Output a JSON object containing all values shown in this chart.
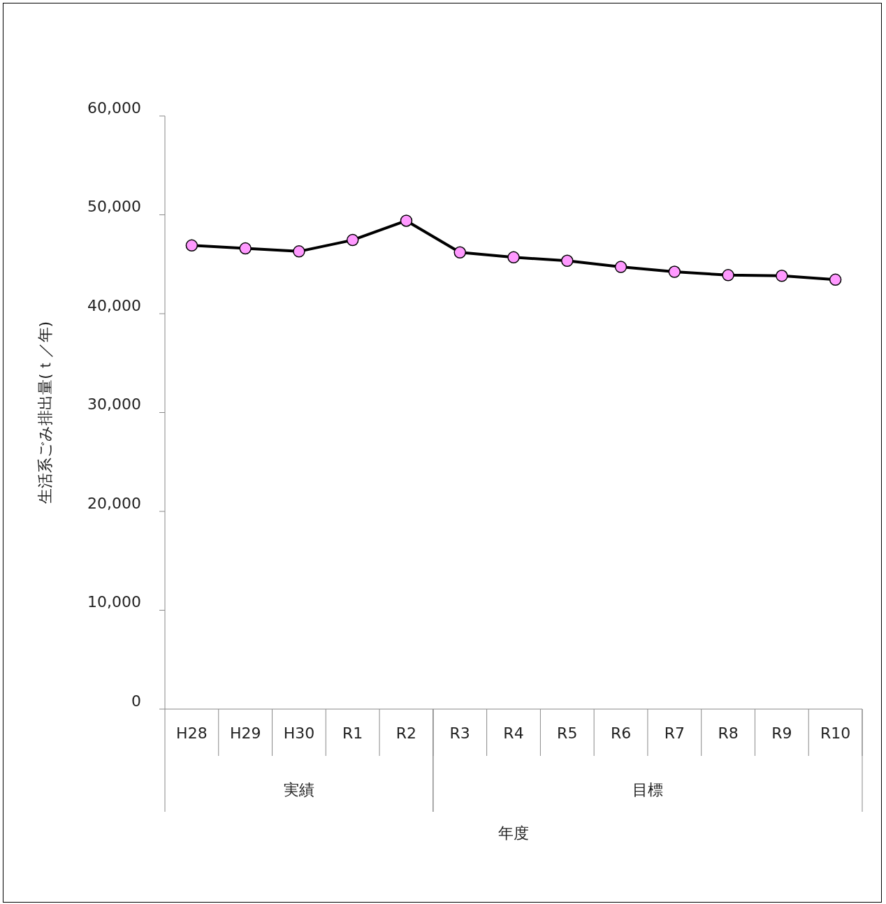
{
  "chart_data": {
    "type": "line",
    "ylabel": "生活系ごみ排出量(ｔ／年)",
    "categories": [
      "H28",
      "H29",
      "H30",
      "R1",
      "R2",
      "R3",
      "R4",
      "R5",
      "R6",
      "R7",
      "R8",
      "R9",
      "R10"
    ],
    "series": [
      {
        "color": "#000000",
        "values": [
          46900,
          46600,
          46300,
          47450,
          49400,
          46200,
          45700,
          45350,
          44730,
          44240,
          43900,
          43830,
          43440
        ]
      }
    ],
    "marker": "circle",
    "line_style": "solid",
    "grid": false,
    "legend": false,
    "ylim": [
      0,
      60000
    ],
    "yticks": [
      {
        "value": 0,
        "label": "0"
      },
      {
        "value": 10000,
        "label": "10,000"
      },
      {
        "value": 20000,
        "label": "20,000"
      },
      {
        "value": 30000,
        "label": "30,000"
      },
      {
        "value": 40000,
        "label": "40,000"
      },
      {
        "value": 50000,
        "label": "50,000"
      },
      {
        "value": 60000,
        "label": "60,000"
      }
    ],
    "annotations": [
      "実績",
      "目標",
      "年度"
    ]
  }
}
